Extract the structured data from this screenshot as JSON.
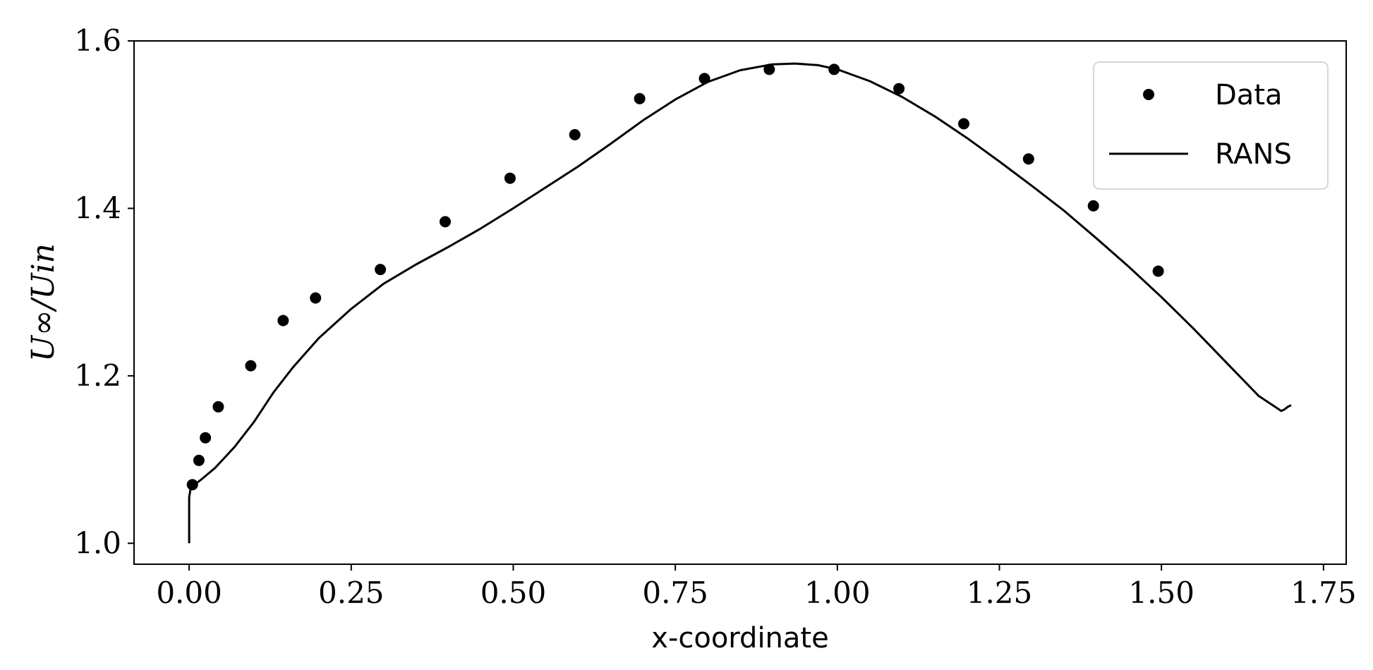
{
  "chart_data": {
    "type": "line",
    "xlabel": "x-coordinate",
    "ylabel": "U∞/Uin",
    "xlim": [
      -0.085,
      1.785
    ],
    "ylim": [
      0.975,
      1.6
    ],
    "grid": false,
    "legend_position": "top-right",
    "x_ticks": [
      {
        "value": 0.0,
        "label": "0.00"
      },
      {
        "value": 0.25,
        "label": "0.25"
      },
      {
        "value": 0.5,
        "label": "0.50"
      },
      {
        "value": 0.75,
        "label": "0.75"
      },
      {
        "value": 1.0,
        "label": "1.00"
      },
      {
        "value": 1.25,
        "label": "1.25"
      },
      {
        "value": 1.5,
        "label": "1.50"
      },
      {
        "value": 1.75,
        "label": "1.75"
      }
    ],
    "y_ticks": [
      {
        "value": 1.0,
        "label": "1.0"
      },
      {
        "value": 1.2,
        "label": "1.2"
      },
      {
        "value": 1.4,
        "label": "1.4"
      },
      {
        "value": 1.6,
        "label": "1.6"
      }
    ],
    "series": [
      {
        "name": "Data",
        "style": "markers",
        "color": "#000000",
        "x": [
          0.005,
          0.015,
          0.025,
          0.045,
          0.095,
          0.145,
          0.195,
          0.295,
          0.395,
          0.495,
          0.595,
          0.695,
          0.795,
          0.895,
          0.995,
          1.095,
          1.195,
          1.295,
          1.395,
          1.495
        ],
        "y": [
          1.07,
          1.099,
          1.126,
          1.163,
          1.212,
          1.266,
          1.293,
          1.327,
          1.384,
          1.436,
          1.488,
          1.531,
          1.555,
          1.566,
          1.566,
          1.543,
          1.501,
          1.459,
          1.403,
          1.325
        ]
      },
      {
        "name": "RANS",
        "style": "line",
        "color": "#000000",
        "x": [
          0.0,
          0.0,
          0.002,
          0.005,
          0.01,
          0.02,
          0.04,
          0.07,
          0.1,
          0.13,
          0.16,
          0.2,
          0.25,
          0.3,
          0.35,
          0.4,
          0.45,
          0.5,
          0.55,
          0.6,
          0.65,
          0.7,
          0.75,
          0.8,
          0.85,
          0.9,
          0.935,
          0.97,
          1.0,
          1.05,
          1.1,
          1.15,
          1.2,
          1.25,
          1.3,
          1.35,
          1.4,
          1.45,
          1.5,
          1.55,
          1.6,
          1.65,
          1.685,
          1.69,
          1.695,
          1.7
        ],
        "y": [
          1.0,
          1.055,
          1.064,
          1.068,
          1.071,
          1.077,
          1.09,
          1.115,
          1.145,
          1.18,
          1.21,
          1.245,
          1.28,
          1.31,
          1.333,
          1.354,
          1.376,
          1.4,
          1.425,
          1.45,
          1.477,
          1.505,
          1.53,
          1.551,
          1.565,
          1.572,
          1.573,
          1.571,
          1.566,
          1.552,
          1.533,
          1.51,
          1.484,
          1.456,
          1.427,
          1.397,
          1.364,
          1.33,
          1.294,
          1.256,
          1.216,
          1.176,
          1.158,
          1.16,
          1.163,
          1.165
        ]
      }
    ]
  }
}
